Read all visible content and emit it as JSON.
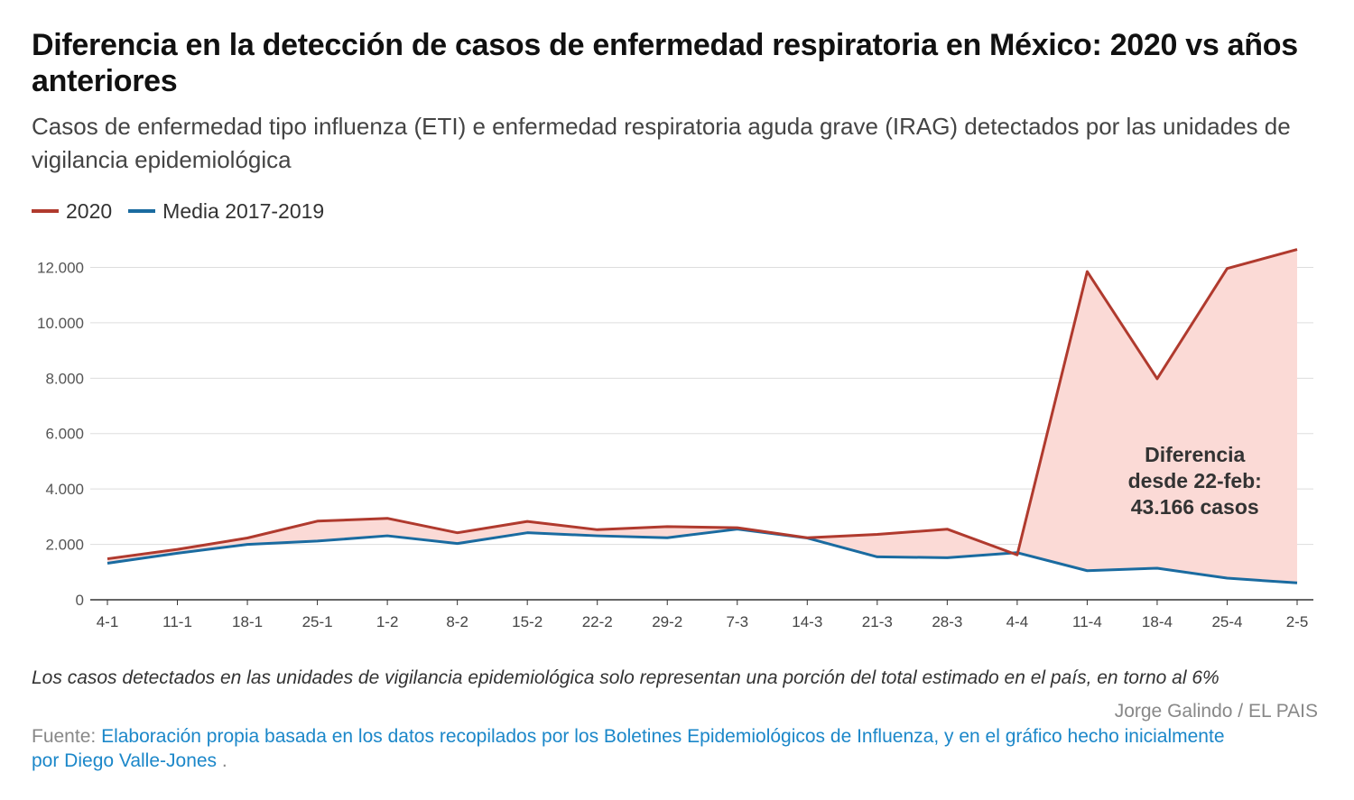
{
  "header": {
    "title": "Diferencia en la detección de casos de enfermedad respiratoria en México: 2020 vs años anteriores",
    "subtitle": "Casos de enfermedad tipo influenza (ETI) e enfermedad respiratoria aguda grave (IRAG) detectados por las unidades de vigilancia epidemiológica"
  },
  "colors": {
    "series_2020": "#b03a2e",
    "series_media": "#1a6ba0",
    "difference_fill": "#fbdad6",
    "grid": "#dddddd",
    "axis": "#333333"
  },
  "chart_data": {
    "type": "line",
    "title": "Diferencia en la detección de casos de enfermedad respiratoria en México: 2020 vs años anteriores",
    "xlabel": "",
    "ylabel": "",
    "categories": [
      "4-1",
      "11-1",
      "18-1",
      "25-1",
      "1-2",
      "8-2",
      "15-2",
      "22-2",
      "29-2",
      "7-3",
      "14-3",
      "21-3",
      "28-3",
      "4-4",
      "11-4",
      "18-4",
      "25-4",
      "2-5"
    ],
    "series": [
      {
        "name": "2020",
        "values": [
          1480,
          1820,
          2230,
          2840,
          2940,
          2420,
          2830,
          2530,
          2640,
          2600,
          2240,
          2360,
          2550,
          1620,
          11850,
          7980,
          11960,
          12650
        ]
      },
      {
        "name": "Media 2017-2019",
        "values": [
          1320,
          1680,
          2000,
          2120,
          2310,
          2030,
          2420,
          2310,
          2240,
          2550,
          2230,
          1550,
          1520,
          1700,
          1050,
          1140,
          780,
          610
        ]
      }
    ],
    "ylim": [
      0,
      12700
    ],
    "yticks": [
      0,
      2000,
      4000,
      6000,
      8000,
      10000,
      12000
    ],
    "ytick_labels": [
      "0",
      "2.000",
      "4.000",
      "6.000",
      "8.000",
      "10.000",
      "12.000"
    ],
    "grid": true,
    "legend_position": "top-left",
    "annotation": {
      "lines": [
        "Diferencia",
        "desde 22-feb:",
        "43.166 casos"
      ],
      "x": "11-4 to 2-5",
      "y": 4000
    }
  },
  "footer": {
    "note": "Los casos detectados en las unidades de vigilancia epidemiológica solo representan una porción del total estimado en el país, en torno al 6%",
    "byline": "Jorge Galindo / EL PAIS",
    "source_label": "Fuente:",
    "source_text": "Elaboración propia basada en los datos recopilados por los Boletines Epidemiológicos de Influenza, y en el gráfico hecho inicialmente por Diego Valle-Jones",
    "source_end": " ."
  }
}
